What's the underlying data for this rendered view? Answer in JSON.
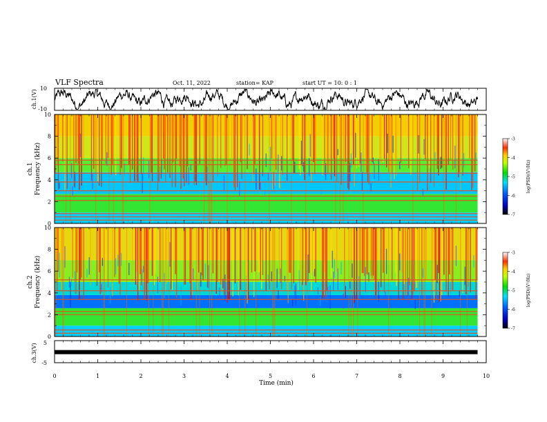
{
  "header": {
    "title": "VLF Spectra",
    "date": "Oct. 11, 2022",
    "station": "station= KAP",
    "start": "start  UT =  10: 0  : 1"
  },
  "chart_data": [
    {
      "type": "line",
      "panel": "ch1-waveform",
      "ylabel": "ch.1(V)",
      "ylim": [
        -10,
        10
      ],
      "yticks": [
        "10",
        "-10"
      ],
      "xlim": [
        0,
        10
      ],
      "color": "#000000"
    },
    {
      "type": "heatmap",
      "panel": "ch1-spectrogram",
      "ylabel_top": "ch.1",
      "ylabel": "Frequency (kHz)",
      "ylim": [
        0,
        10
      ],
      "yticks": [
        "0",
        "2",
        "4",
        "6",
        "8",
        "10"
      ],
      "xlim": [
        0,
        9.8
      ],
      "colorbar": {
        "label": "log(PSD)(V²/Hz)",
        "range": [
          -7,
          -3
        ],
        "ticks": [
          "-3",
          "-4",
          "-5",
          "-6",
          "-7"
        ]
      },
      "bands_khz": [
        {
          "f0": 0.0,
          "f1": 1.0,
          "color": "#00d0ff"
        },
        {
          "f0": 1.0,
          "f1": 2.7,
          "color": "#33e633"
        },
        {
          "f0": 2.7,
          "f1": 4.7,
          "color": "#00c8ff"
        },
        {
          "f0": 4.7,
          "f1": 6.0,
          "color": "#55ee33"
        },
        {
          "f0": 6.0,
          "f1": 8.0,
          "color": "#cfe61a"
        },
        {
          "f0": 8.0,
          "f1": 10.0,
          "color": "#f0d000"
        }
      ],
      "lines_khz": [
        0.3,
        0.6,
        0.9,
        2.1,
        2.5,
        3.0,
        3.8,
        4.6,
        5.4,
        5.8
      ]
    },
    {
      "type": "heatmap",
      "panel": "ch2-spectrogram",
      "ylabel_top": "ch.2",
      "ylabel": "Frequency (kHz)",
      "ylim": [
        0,
        10
      ],
      "yticks": [
        "0",
        "2",
        "4",
        "6",
        "8",
        "10"
      ],
      "xlim": [
        0,
        9.8
      ],
      "colorbar": {
        "label": "log(PSD)(V²/Hz)",
        "range": [
          -7,
          -3
        ],
        "ticks": [
          "-3",
          "-4",
          "-5",
          "-6",
          "-7"
        ]
      },
      "bands_khz": [
        {
          "f0": 0.0,
          "f1": 1.0,
          "color": "#00d0ff"
        },
        {
          "f0": 1.0,
          "f1": 2.6,
          "color": "#33e633"
        },
        {
          "f0": 2.6,
          "f1": 3.8,
          "color": "#0070ff"
        },
        {
          "f0": 3.8,
          "f1": 5.0,
          "color": "#00d8d8"
        },
        {
          "f0": 5.0,
          "f1": 7.0,
          "color": "#88ee22"
        },
        {
          "f0": 7.0,
          "f1": 10.0,
          "color": "#e6d810"
        }
      ],
      "lines_khz": [
        0.3,
        0.6,
        2.0,
        2.3,
        3.4,
        4.2,
        5.2
      ]
    },
    {
      "type": "line",
      "panel": "ch3-waveform",
      "ylabel": "ch.3(V)",
      "ylim": [
        -5,
        5
      ],
      "yticks": [
        "5",
        "-5"
      ],
      "xlim": [
        0,
        10
      ],
      "level": -0.2,
      "color": "#000000"
    }
  ],
  "xaxis": {
    "label": "Time (min)",
    "range": [
      0,
      10
    ],
    "ticks": [
      "0",
      "1",
      "2",
      "3",
      "4",
      "5",
      "6",
      "7",
      "8",
      "9",
      "10"
    ]
  }
}
